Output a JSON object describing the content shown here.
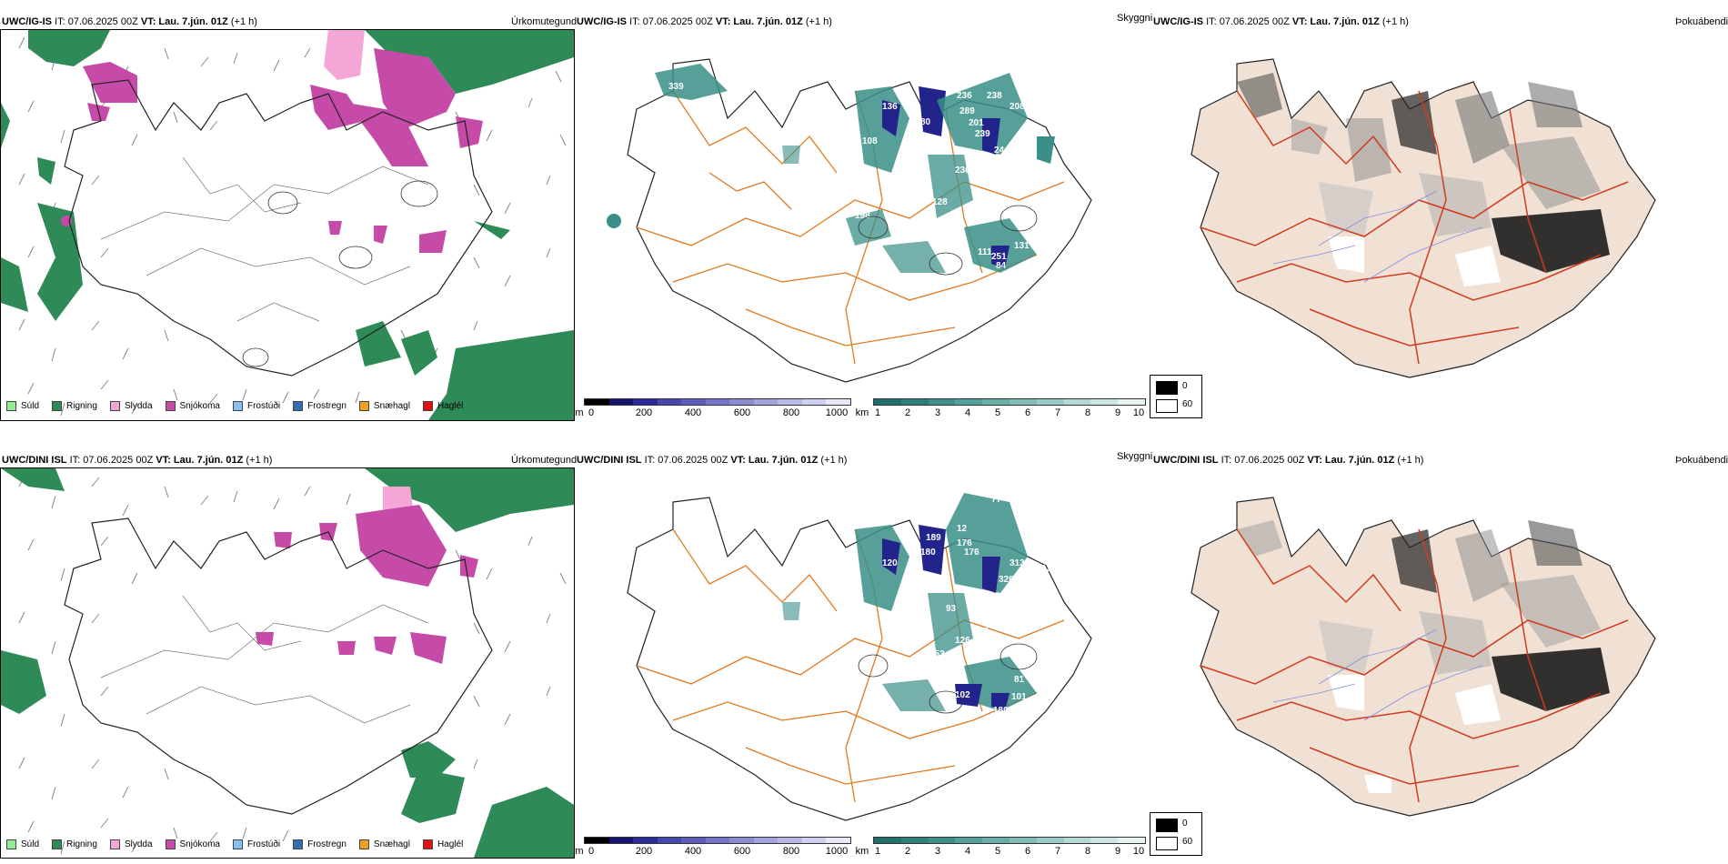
{
  "panels": [
    {
      "id": "r1",
      "model": "UWC/IG-IS",
      "it": "IT: 07.06.2025 00Z",
      "vt_label": "VT:",
      "vt": "Lau. 7.jún. 01Z",
      "lead": "(+1 h)"
    },
    {
      "id": "r2",
      "model": "UWC/DINI ISL",
      "it": "IT: 07.06.2025 00Z",
      "vt_label": "VT:",
      "vt": "Lau. 7.jún. 01Z",
      "lead": "(+1 h)"
    }
  ],
  "titles": {
    "precip": "Úrkomutegund",
    "visibility": "Skyggni",
    "fog": "Þokuábendi"
  },
  "precip_legend": [
    {
      "label": "Súld",
      "color": "#90ee90"
    },
    {
      "label": "Rigning",
      "color": "#2e8b57"
    },
    {
      "label": "Slydda",
      "color": "#f4a6d7"
    },
    {
      "label": "Snjókoma",
      "color": "#c64ba8"
    },
    {
      "label": "Frostúði",
      "color": "#87bff0"
    },
    {
      "label": "Frostregn",
      "color": "#2f6fb5"
    },
    {
      "label": "Snæhagl",
      "color": "#f0a020"
    },
    {
      "label": "Haglél",
      "color": "#e01010"
    }
  ],
  "height_scale": {
    "unit": "m",
    "ticks": [
      "0",
      "200",
      "400",
      "600",
      "800",
      "1000"
    ],
    "colors": [
      "#000000",
      "#14146e",
      "#2a2a9a",
      "#4747b0",
      "#5d5dbd",
      "#7474c8",
      "#8b8bd2",
      "#a2a2dc",
      "#b9b9e6",
      "#d0d0f0",
      "#e8e8f8"
    ]
  },
  "vis_scale": {
    "unit": "km",
    "ticks": [
      "1",
      "2",
      "3",
      "4",
      "5",
      "6",
      "7",
      "8",
      "9",
      "10"
    ],
    "colors": [
      "#1f6f6b",
      "#2e807b",
      "#3f908b",
      "#54a09b",
      "#6aafaa",
      "#82bdb8",
      "#9bcbc7",
      "#b5d9d5",
      "#cfe7e4",
      "#e8f3f2"
    ]
  },
  "fog_scale": {
    "items": [
      {
        "label": "0",
        "color": "#000000"
      },
      {
        "label": "60",
        "color": "#ffffff"
      }
    ]
  },
  "colors": {
    "rain": "#2e8b57",
    "snow": "#c64ba8",
    "sleet": "#f4a6d7",
    "teal": "#3a8f88",
    "blue": "#23238c",
    "road": "#e07a20",
    "land": "#f1e1d4",
    "redroad": "#d23a1e"
  },
  "vis_labels_r1": [
    "339",
    "136",
    "108",
    "80",
    "198",
    "289",
    "236",
    "238",
    "208",
    "201",
    "239",
    "244",
    "103",
    "128",
    "78",
    "131",
    "123",
    "111",
    "84",
    "236",
    "251"
  ],
  "vis_labels_r2": [
    "77",
    "232",
    "12",
    "180",
    "176",
    "189",
    "176",
    "120",
    "313",
    "326",
    "131",
    "93",
    "124",
    "153",
    "102",
    "126",
    "101",
    "180",
    "81"
  ]
}
